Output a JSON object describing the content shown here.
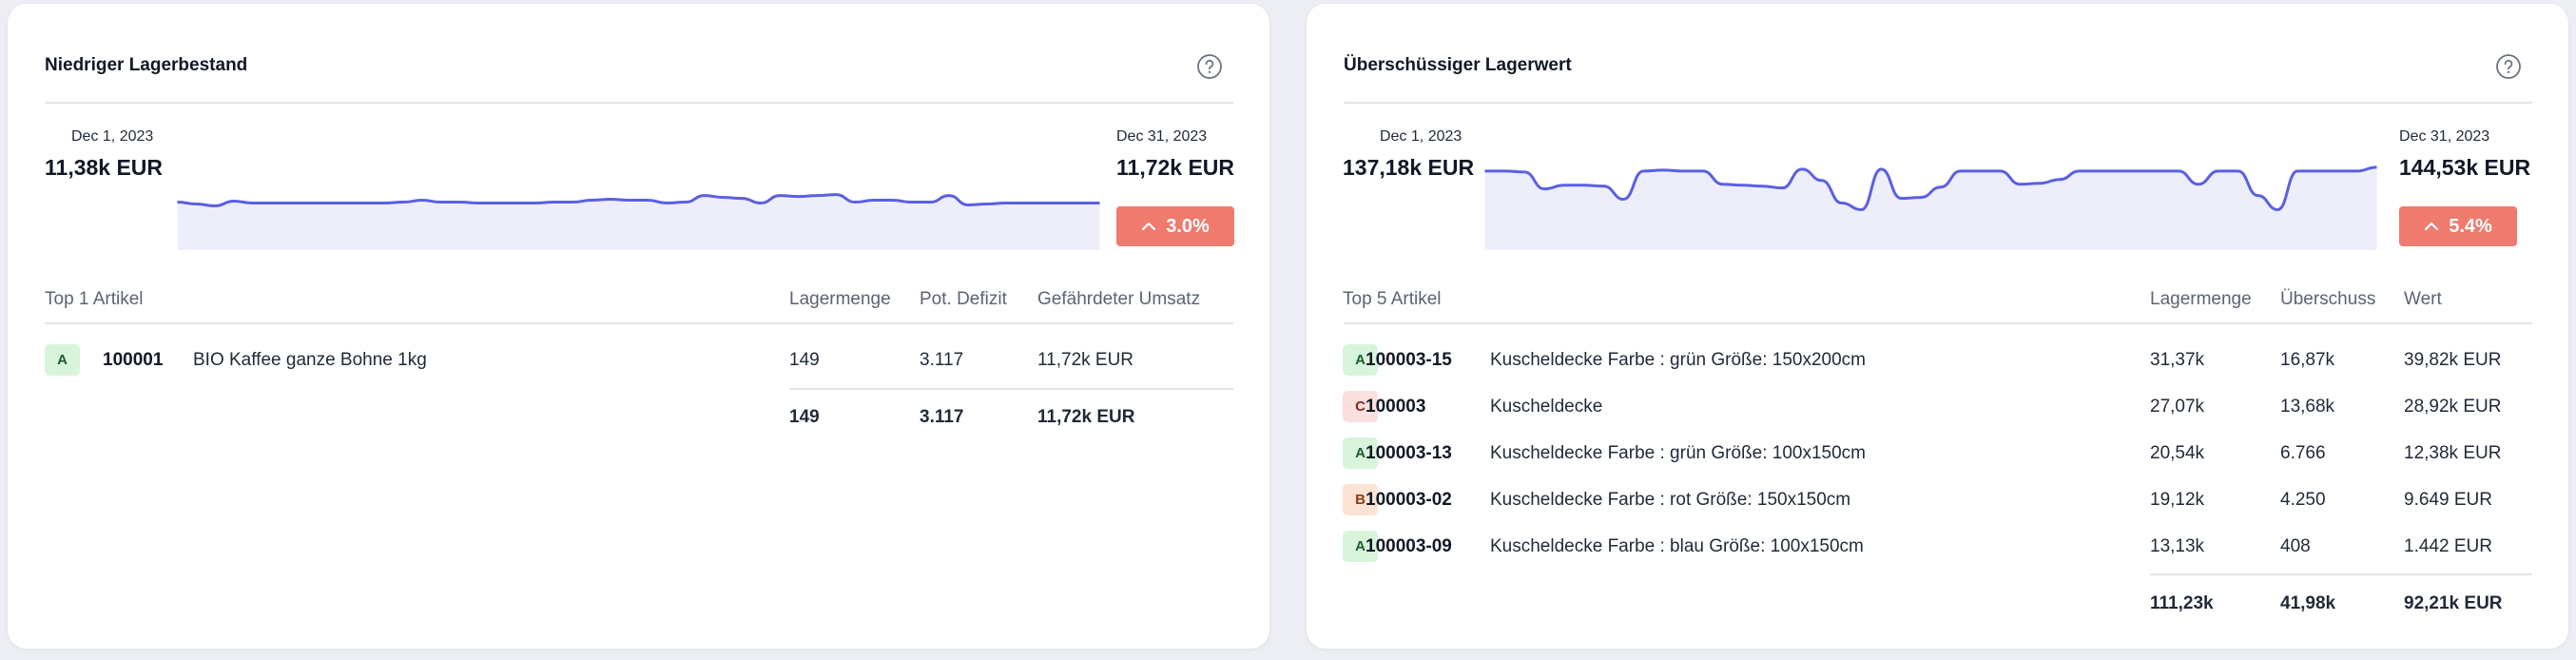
{
  "colors": {
    "accent_line": "#5B5FE3",
    "area_fill": "#EEEEFB",
    "change_badge": "#EF7A6E"
  },
  "left": {
    "title": "Niedriger Lagerbestand",
    "help_icon": "question-circle-icon",
    "start_date": "Dec 1, 2023",
    "start_value": "11,38k EUR",
    "end_date": "Dec 31, 2023",
    "end_value": "11,72k EUR",
    "change": "3.0%",
    "change_icon": "chevron-up-icon",
    "spark": [
      53,
      51,
      49,
      54,
      52,
      52,
      52,
      52,
      52,
      52,
      52,
      52,
      53,
      55,
      53,
      53,
      52,
      52,
      52,
      52,
      53,
      53,
      55,
      56,
      55,
      55,
      52,
      53,
      60,
      58,
      57,
      52,
      60,
      59,
      60,
      61,
      53,
      55,
      55,
      53,
      53,
      60,
      50,
      51,
      52,
      52,
      52,
      52,
      52,
      52
    ],
    "table": {
      "headers": [
        "Top 1 Artikel",
        "Lagermenge",
        "Pot. Defizit",
        "Gefährdeter Umsatz"
      ],
      "rows": [
        {
          "class": "A",
          "id": "100001",
          "name": "BIO Kaffee ganze Bohne 1kg",
          "c1": "149",
          "c2": "3.117",
          "c3": "11,72k EUR"
        }
      ],
      "totals": {
        "c1": "149",
        "c2": "3.117",
        "c3": "11,72k EUR"
      }
    }
  },
  "right": {
    "title": "Überschüssiger Lagerwert",
    "help_icon": "question-circle-icon",
    "start_date": "Dec 1, 2023",
    "start_value": "137,18k EUR",
    "end_date": "Dec 31, 2023",
    "end_value": "144,53k EUR",
    "change": "5.4%",
    "change_icon": "chevron-up-icon",
    "spark": [
      86,
      86,
      85,
      67,
      71,
      71,
      70,
      56,
      86,
      87,
      86,
      86,
      72,
      71,
      70,
      68,
      88,
      76,
      52,
      45,
      88,
      57,
      58,
      69,
      86,
      86,
      86,
      72,
      73,
      77,
      86,
      86,
      86,
      86,
      86,
      86,
      72,
      86,
      86,
      60,
      45,
      86,
      86,
      86,
      86,
      90
    ],
    "table": {
      "headers": [
        "Top 5 Artikel",
        "Lagermenge",
        "Überschuss",
        "Wert"
      ],
      "rows": [
        {
          "class": "A",
          "id": "100003-15",
          "name": "Kuscheldecke Farbe : grün Größe: 150x200cm",
          "c1": "31,37k",
          "c2": "16,87k",
          "c3": "39,82k EUR"
        },
        {
          "class": "C",
          "id": "100003",
          "name": "Kuscheldecke",
          "c1": "27,07k",
          "c2": "13,68k",
          "c3": "28,92k EUR"
        },
        {
          "class": "A",
          "id": "100003-13",
          "name": "Kuscheldecke Farbe : grün Größe: 100x150cm",
          "c1": "20,54k",
          "c2": "6.766",
          "c3": "12,38k EUR"
        },
        {
          "class": "B",
          "id": "100003-02",
          "name": "Kuscheldecke Farbe : rot Größe: 150x150cm",
          "c1": "19,12k",
          "c2": "4.250",
          "c3": "9.649 EUR"
        },
        {
          "class": "A",
          "id": "100003-09",
          "name": "Kuscheldecke Farbe : blau Größe: 100x150cm",
          "c1": "13,13k",
          "c2": "408",
          "c3": "1.442 EUR"
        }
      ],
      "totals": {
        "c1": "111,23k",
        "c2": "41,98k",
        "c3": "92,21k EUR"
      }
    }
  }
}
